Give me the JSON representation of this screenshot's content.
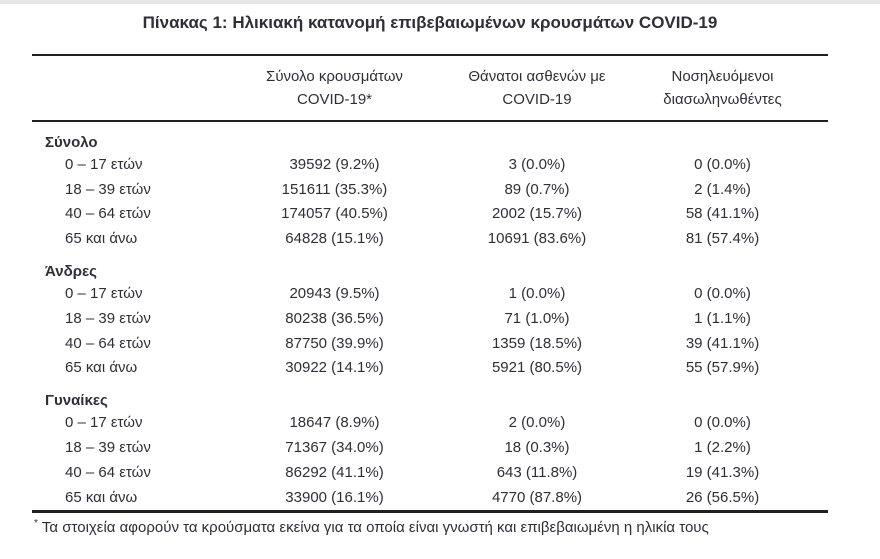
{
  "title": "Πίνακας 1: Ηλικιακή κατανομή επιβεβαιωμένων κρουσμάτων COVID-19",
  "colors": {
    "text": "#2f2f37",
    "rule": "#1f1f1f"
  },
  "table": {
    "column_headers": [
      {
        "line1": "Σύνολο κρουσμάτων",
        "line2": "COVID-19*"
      },
      {
        "line1": "Θάνατοι ασθενών με",
        "line2": "COVID-19"
      },
      {
        "line1": "Νοσηλευόμενοι",
        "line2": "διασωληνωθέντες"
      }
    ],
    "sections": [
      {
        "label": "Σύνολο",
        "rows": [
          {
            "label": "0 – 17 ετών",
            "cases": "39592 (9.2%)",
            "deaths": "3 (0.0%)",
            "intubated": "0 (0.0%)"
          },
          {
            "label": "18 – 39 ετών",
            "cases": "151611 (35.3%)",
            "deaths": "89 (0.7%)",
            "intubated": "2 (1.4%)"
          },
          {
            "label": "40 – 64 ετών",
            "cases": "174057 (40.5%)",
            "deaths": "2002 (15.7%)",
            "intubated": "58 (41.1%)"
          },
          {
            "label": "65 και άνω",
            "cases": "64828 (15.1%)",
            "deaths": "10691 (83.6%)",
            "intubated": "81 (57.4%)"
          }
        ]
      },
      {
        "label": "Άνδρες",
        "rows": [
          {
            "label": "0 – 17 ετών",
            "cases": "20943 (9.5%)",
            "deaths": "1 (0.0%)",
            "intubated": "0 (0.0%)"
          },
          {
            "label": "18 – 39 ετών",
            "cases": "80238 (36.5%)",
            "deaths": "71 (1.0%)",
            "intubated": "1 (1.1%)"
          },
          {
            "label": "40 – 64 ετών",
            "cases": "87750 (39.9%)",
            "deaths": "1359 (18.5%)",
            "intubated": "39 (41.1%)"
          },
          {
            "label": "65 και άνω",
            "cases": "30922 (14.1%)",
            "deaths": "5921 (80.5%)",
            "intubated": "55 (57.9%)"
          }
        ]
      },
      {
        "label": "Γυναίκες",
        "rows": [
          {
            "label": "0 – 17 ετών",
            "cases": "18647 (8.9%)",
            "deaths": "2 (0.0%)",
            "intubated": "0 (0.0%)"
          },
          {
            "label": "18 – 39 ετών",
            "cases": "71367 (34.0%)",
            "deaths": "18 (0.3%)",
            "intubated": "1 (2.2%)"
          },
          {
            "label": "40 – 64 ετών",
            "cases": "86292 (41.1%)",
            "deaths": "643 (11.8%)",
            "intubated": "19 (41.3%)"
          },
          {
            "label": "65 και άνω",
            "cases": "33900 (16.1%)",
            "deaths": "4770 (87.8%)",
            "intubated": "26 (56.5%)"
          }
        ]
      }
    ]
  },
  "footnote": {
    "marker": "*",
    "text": "Τα στοιχεία αφορούν τα κρούσματα εκείνα για τα οποία είναι γνωστή και επιβεβαιωμένη η ηλικία τους"
  }
}
